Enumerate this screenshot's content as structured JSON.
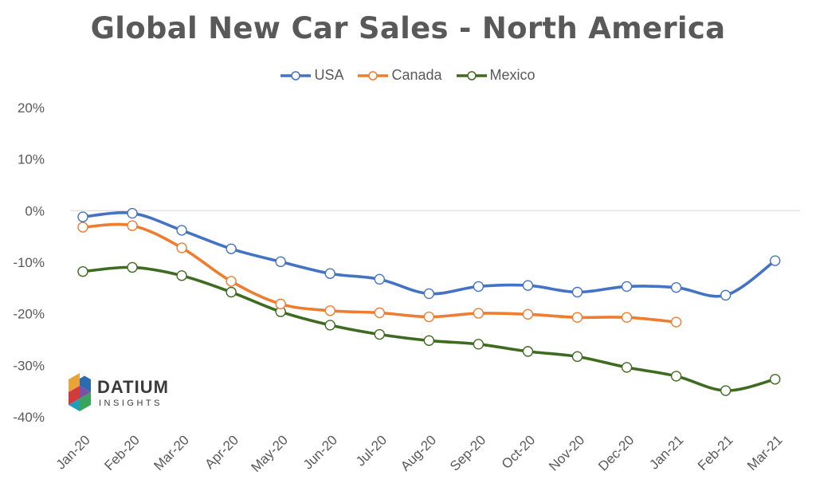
{
  "chart_data": {
    "type": "line",
    "title": "Global New Car Sales - North America",
    "categories": [
      "Jan-20",
      "Feb-20",
      "Mar-20",
      "Apr-20",
      "May-20",
      "Jun-20",
      "Jul-20",
      "Aug-20",
      "Sep-20",
      "Oct-20",
      "Nov-20",
      "Dec-20",
      "Jan-21",
      "Feb-21",
      "Mar-21"
    ],
    "series": [
      {
        "name": "USA",
        "color": "#4472C4",
        "values": [
          -1.2,
          -0.5,
          -3.8,
          -7.4,
          -9.9,
          -12.2,
          -13.3,
          -16.1,
          -14.7,
          -14.5,
          -15.8,
          -14.7,
          -14.9,
          -16.4,
          -9.7
        ]
      },
      {
        "name": "Canada",
        "color": "#ED7D31",
        "values": [
          -3.2,
          -2.9,
          -7.2,
          -13.7,
          -18.1,
          -19.4,
          -19.8,
          -20.6,
          -19.9,
          -20.1,
          -20.7,
          -20.7,
          -21.6,
          null,
          null
        ]
      },
      {
        "name": "Mexico",
        "color": "#3E6B20",
        "values": [
          -11.8,
          -11.0,
          -12.6,
          -15.8,
          -19.6,
          -22.2,
          -24.0,
          -25.2,
          -25.9,
          -27.3,
          -28.3,
          -30.4,
          -32.1,
          -34.9,
          -32.7
        ]
      }
    ],
    "yticks": [
      "20%",
      "10%",
      "0%",
      "-10%",
      "-20%",
      "-30%",
      "-40%"
    ],
    "ylim": [
      -40,
      20
    ],
    "ytick_values": [
      20,
      10,
      0,
      -10,
      -20,
      -30,
      -40
    ],
    "xlabel": "",
    "ylabel": "",
    "grid": false,
    "zero_line": true,
    "legend_position": "top-center",
    "markers": "open-circle",
    "smooth": true
  },
  "logo": {
    "name": "DATIUM",
    "sub": "INSIGHTS"
  }
}
